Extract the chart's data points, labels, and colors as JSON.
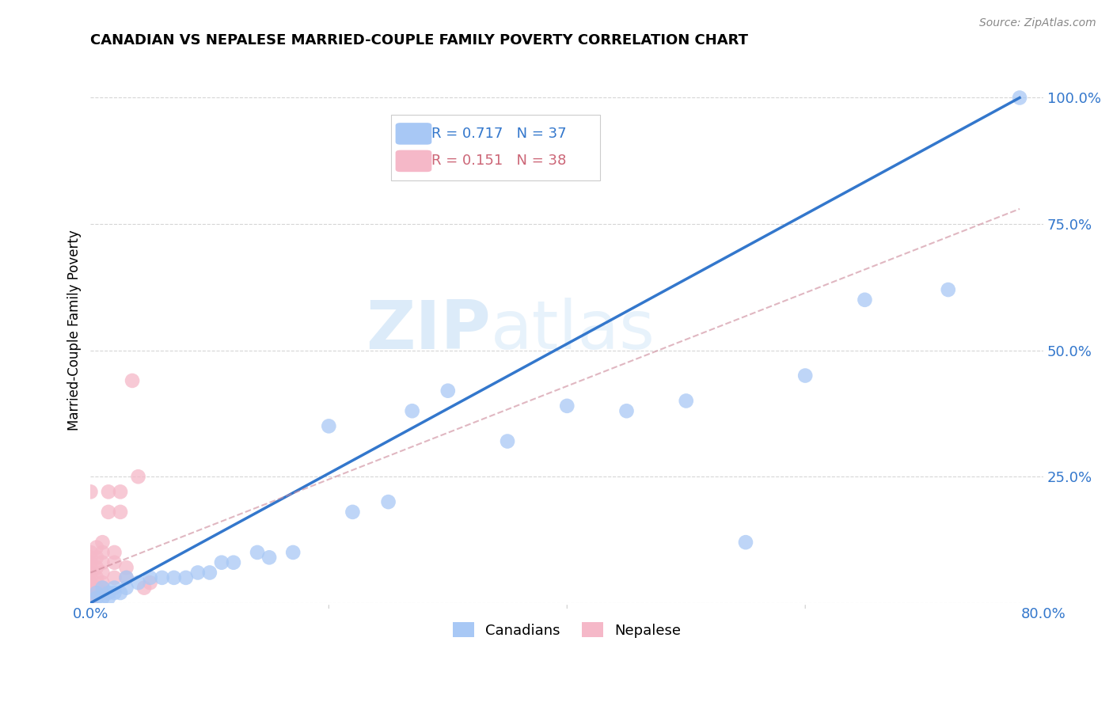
{
  "title": "CANADIAN VS NEPALESE MARRIED-COUPLE FAMILY POVERTY CORRELATION CHART",
  "source": "Source: ZipAtlas.com",
  "ylabel": "Married-Couple Family Poverty",
  "xlim": [
    0,
    0.8
  ],
  "ylim": [
    0,
    1.08
  ],
  "x_ticks": [
    0.0,
    0.2,
    0.4,
    0.6,
    0.8
  ],
  "y_ticks": [
    0.0,
    0.25,
    0.5,
    0.75,
    1.0
  ],
  "background_color": "#ffffff",
  "grid_color": "#cccccc",
  "watermark_zip": "ZIP",
  "watermark_atlas": "atlas",
  "canadians_color": "#a8c8f5",
  "nepalese_color": "#f5b8c8",
  "canadian_trendline_color": "#3377cc",
  "nepalese_trendline_color": "#cc8899",
  "canadian_R": 0.717,
  "canadian_N": 37,
  "nepalese_R": 0.151,
  "nepalese_N": 38,
  "canadians_x": [
    0.005,
    0.005,
    0.01,
    0.01,
    0.015,
    0.015,
    0.02,
    0.02,
    0.025,
    0.03,
    0.03,
    0.04,
    0.05,
    0.06,
    0.07,
    0.08,
    0.09,
    0.1,
    0.11,
    0.12,
    0.14,
    0.15,
    0.17,
    0.2,
    0.22,
    0.25,
    0.27,
    0.3,
    0.35,
    0.4,
    0.45,
    0.5,
    0.55,
    0.6,
    0.65,
    0.72,
    0.78
  ],
  "canadians_y": [
    0.01,
    0.02,
    0.01,
    0.03,
    0.01,
    0.02,
    0.02,
    0.03,
    0.02,
    0.03,
    0.05,
    0.04,
    0.05,
    0.05,
    0.05,
    0.05,
    0.06,
    0.06,
    0.08,
    0.08,
    0.1,
    0.09,
    0.1,
    0.35,
    0.18,
    0.2,
    0.38,
    0.42,
    0.32,
    0.39,
    0.38,
    0.4,
    0.12,
    0.45,
    0.6,
    0.62,
    1.0
  ],
  "nepalese_x": [
    0.0,
    0.0,
    0.0,
    0.0,
    0.0,
    0.0,
    0.0,
    0.0,
    0.0,
    0.0,
    0.0,
    0.0,
    0.005,
    0.005,
    0.005,
    0.005,
    0.005,
    0.005,
    0.01,
    0.01,
    0.01,
    0.01,
    0.01,
    0.01,
    0.01,
    0.015,
    0.015,
    0.02,
    0.02,
    0.02,
    0.025,
    0.025,
    0.03,
    0.03,
    0.035,
    0.04,
    0.045,
    0.05
  ],
  "nepalese_y": [
    0.0,
    0.01,
    0.02,
    0.03,
    0.04,
    0.05,
    0.06,
    0.07,
    0.08,
    0.09,
    0.1,
    0.22,
    0.02,
    0.03,
    0.05,
    0.07,
    0.09,
    0.11,
    0.02,
    0.03,
    0.04,
    0.06,
    0.08,
    0.1,
    0.12,
    0.18,
    0.22,
    0.05,
    0.08,
    0.1,
    0.18,
    0.22,
    0.05,
    0.07,
    0.44,
    0.25,
    0.03,
    0.04
  ],
  "canadian_trend_x": [
    0.0,
    0.78
  ],
  "canadian_trend_y": [
    0.0,
    1.0
  ],
  "nepalese_trend_x": [
    0.0,
    0.78
  ],
  "nepalese_trend_y": [
    0.06,
    0.78
  ]
}
